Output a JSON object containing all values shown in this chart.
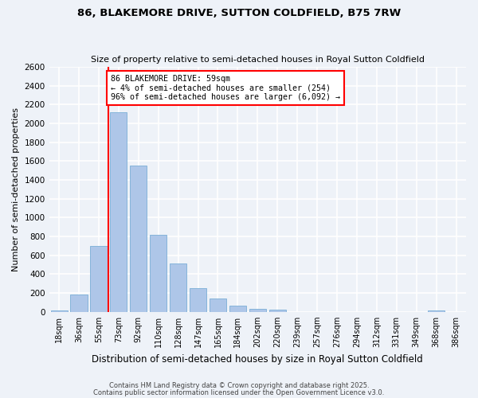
{
  "title1": "86, BLAKEMORE DRIVE, SUTTON COLDFIELD, B75 7RW",
  "title2": "Size of property relative to semi-detached houses in Royal Sutton Coldfield",
  "xlabel": "Distribution of semi-detached houses by size in Royal Sutton Coldfield",
  "ylabel": "Number of semi-detached properties",
  "categories": [
    "18sqm",
    "36sqm",
    "55sqm",
    "73sqm",
    "92sqm",
    "110sqm",
    "128sqm",
    "147sqm",
    "165sqm",
    "184sqm",
    "202sqm",
    "220sqm",
    "239sqm",
    "257sqm",
    "276sqm",
    "294sqm",
    "312sqm",
    "331sqm",
    "349sqm",
    "368sqm",
    "386sqm"
  ],
  "values": [
    15,
    180,
    700,
    2120,
    1550,
    820,
    515,
    255,
    145,
    70,
    35,
    20,
    0,
    0,
    0,
    0,
    0,
    0,
    0,
    15,
    0
  ],
  "bar_color": "#aec6e8",
  "bar_edge_color": "#7aaed6",
  "vline_color": "red",
  "vline_x": 2.5,
  "annotation_text": "86 BLAKEMORE DRIVE: 59sqm\n← 4% of semi-detached houses are smaller (254)\n96% of semi-detached houses are larger (6,092) →",
  "annotation_box_color": "white",
  "annotation_box_edge": "red",
  "ylim": [
    0,
    2600
  ],
  "yticks": [
    0,
    200,
    400,
    600,
    800,
    1000,
    1200,
    1400,
    1600,
    1800,
    2000,
    2200,
    2400,
    2600
  ],
  "footnote1": "Contains HM Land Registry data © Crown copyright and database right 2025.",
  "footnote2": "Contains public sector information licensed under the Open Government Licence v3.0.",
  "bg_color": "#eef2f8",
  "grid_color": "white"
}
